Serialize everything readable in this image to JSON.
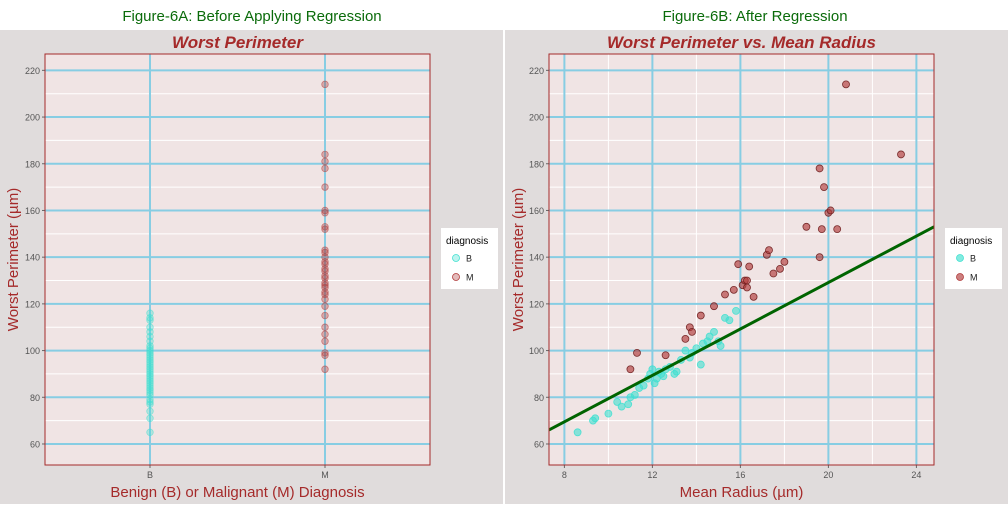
{
  "colors": {
    "figure_title": "#0a6b0a",
    "panel_bg": "#e0dcdc",
    "plot_bg": "#f0e4e4",
    "plot_border": "#a52a2a",
    "major_grid": "#87cde3",
    "minor_grid": "#ffffff",
    "title": "#a52a2a",
    "axis_label": "#a52a2a",
    "tick_label": "#555555",
    "benign": "#40e0d0",
    "malignant": "#b03a3a",
    "regression_line": "#006400"
  },
  "chart_data": [
    {
      "type": "scatter",
      "figure_title": "Figure-6A: Before Applying Regression",
      "title": "Worst Perimeter",
      "xlabel": "Benign (B) or Malignant (M) Diagnosis",
      "ylabel": "Worst Perimeter (µm)",
      "x_scale": "categorical",
      "categories": [
        "B",
        "M"
      ],
      "ylim": [
        51,
        227
      ],
      "yticks": [
        60,
        80,
        100,
        120,
        140,
        160,
        180,
        200,
        220
      ],
      "grid": true,
      "legend": {
        "title": "diagnosis",
        "position": "right",
        "entries": [
          "B",
          "M"
        ]
      },
      "series": [
        {
          "name": "B",
          "color_key": "benign",
          "x": "B",
          "values": [
            65,
            71,
            74,
            77,
            78,
            79,
            81,
            82,
            83,
            84,
            85,
            86,
            87,
            88,
            89,
            90,
            91,
            92,
            93,
            94,
            95,
            96,
            97,
            98,
            99,
            100,
            101,
            102,
            104,
            106,
            108,
            110,
            113,
            114,
            116
          ]
        },
        {
          "name": "M",
          "color_key": "malignant",
          "x": "M",
          "values": [
            92,
            98,
            99,
            104,
            107,
            110,
            115,
            119,
            122,
            124,
            125,
            127,
            128,
            129,
            131,
            132,
            134,
            135,
            137,
            138,
            140,
            142,
            143,
            152,
            153,
            159,
            160,
            170,
            178,
            181,
            184,
            214
          ]
        }
      ]
    },
    {
      "type": "scatter",
      "figure_title": "Figure-6B: After Regression",
      "title": "Worst Perimeter vs. Mean Radius",
      "xlabel": "Mean Radius (µm)",
      "ylabel": "Worst Perimeter (µm)",
      "xlim": [
        7.3,
        24.8
      ],
      "ylim": [
        51,
        227
      ],
      "xticks": [
        8,
        12,
        16,
        20,
        24
      ],
      "yticks": [
        60,
        80,
        100,
        120,
        140,
        160,
        180,
        200,
        220
      ],
      "grid": true,
      "legend": {
        "title": "diagnosis",
        "position": "right",
        "entries": [
          "B",
          "M"
        ]
      },
      "regression_line": {
        "x": [
          7.3,
          24.8
        ],
        "y": [
          66,
          153
        ]
      },
      "series": [
        {
          "name": "B",
          "color_key": "benign",
          "x": [
            8.6,
            9.3,
            9.4,
            10.0,
            10.4,
            10.6,
            10.9,
            11.0,
            11.2,
            11.4,
            11.6,
            11.8,
            11.9,
            12.0,
            12.1,
            12.2,
            12.3,
            12.4,
            12.5,
            12.6,
            12.8,
            13.0,
            13.1,
            13.3,
            13.5,
            13.7,
            13.8,
            14.0,
            14.2,
            14.3,
            14.5,
            14.6,
            14.8,
            15.0,
            15.1,
            15.3,
            15.5,
            15.8
          ],
          "y": [
            65,
            70,
            71,
            73,
            78,
            76,
            77,
            80,
            81,
            84,
            85,
            88,
            90,
            92,
            86,
            88,
            91,
            90,
            89,
            92,
            93,
            90,
            91,
            96,
            100,
            97,
            99,
            101,
            94,
            103,
            104,
            106,
            108,
            104,
            102,
            114,
            113,
            117
          ]
        },
        {
          "name": "M",
          "color_key": "malignant",
          "x": [
            11.0,
            11.3,
            12.6,
            13.5,
            13.7,
            13.8,
            14.2,
            14.8,
            15.3,
            15.7,
            15.9,
            16.1,
            16.2,
            16.3,
            16.3,
            16.4,
            16.6,
            17.2,
            17.3,
            17.5,
            17.8,
            18.0,
            19.0,
            19.6,
            19.6,
            19.7,
            19.8,
            20.0,
            20.1,
            20.4,
            20.8,
            23.3
          ],
          "y": [
            92,
            99,
            98,
            105,
            110,
            108,
            115,
            119,
            124,
            126,
            137,
            128,
            130,
            127,
            130,
            136,
            123,
            141,
            143,
            133,
            135,
            138,
            153,
            178,
            140,
            152,
            170,
            159,
            160,
            152,
            214,
            184
          ]
        }
      ]
    }
  ]
}
